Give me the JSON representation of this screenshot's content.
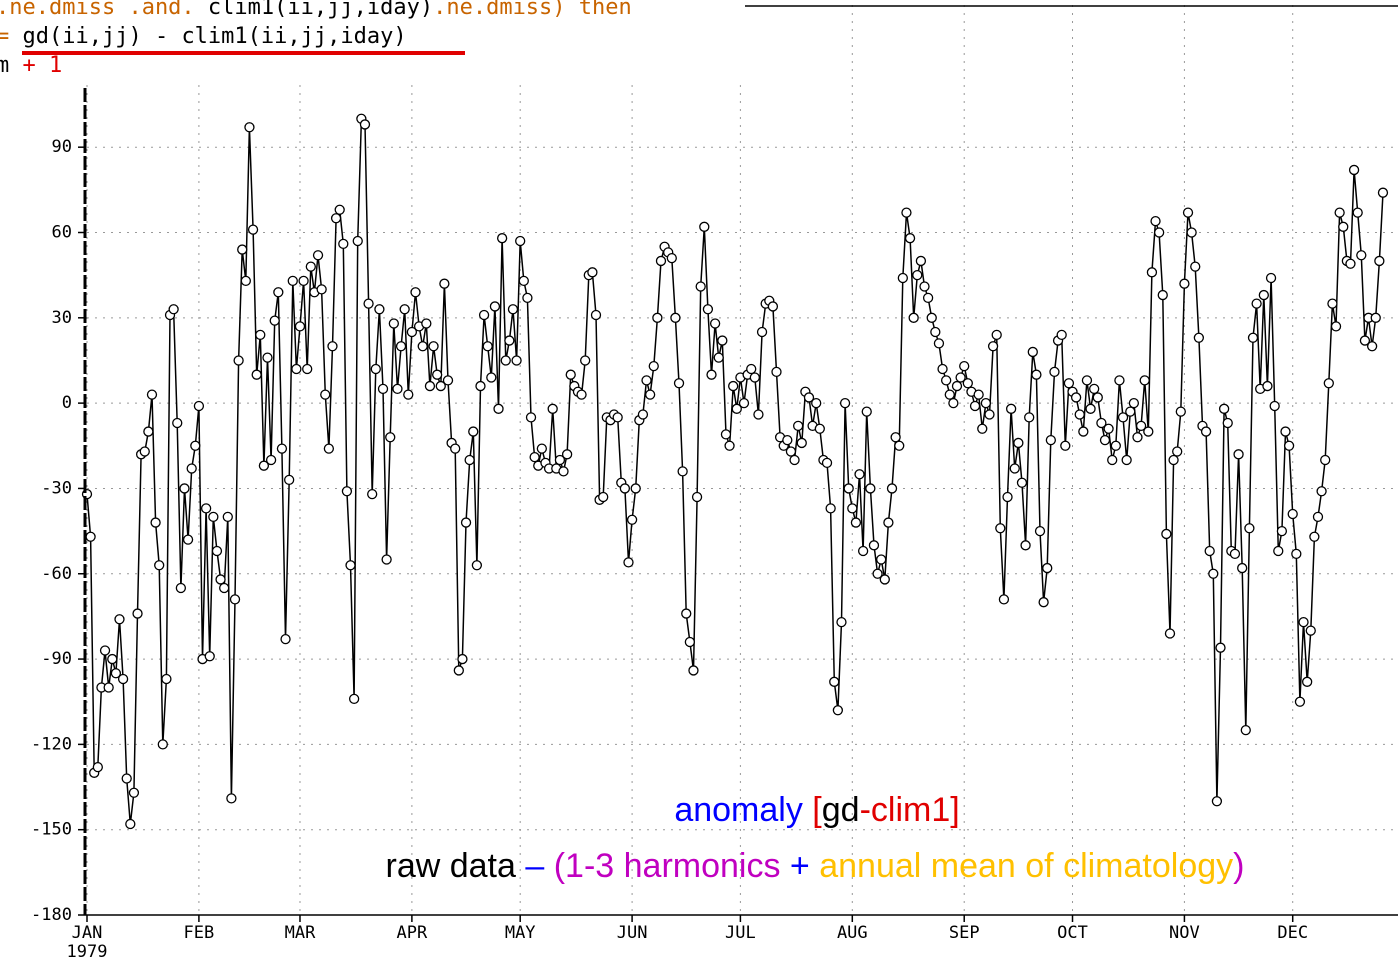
{
  "code_overlay": [
    [
      {
        "text": ".ne.dmiss .and. ",
        "color": "#c86400"
      },
      {
        "text": "clim1(ii,jj,iday)",
        "color": "#000000"
      },
      {
        "text": ".ne.dmiss) then",
        "color": "#c86400"
      }
    ],
    [
      {
        "text": "= ",
        "color": "#c86400"
      },
      {
        "text": "gd(ii,jj) - clim1(ii,jj,iday)",
        "color": "#000000"
      }
    ],
    [
      {
        "text": "m ",
        "color": "#000000"
      },
      {
        "text": "+ 1",
        "color": "#e00000"
      }
    ]
  ],
  "chart_data": {
    "type": "line",
    "x_sublabel": "1979",
    "color": "#000000",
    "marker_color": "#ffffff",
    "grid": true,
    "xlim": [
      1,
      364
    ],
    "ylim": [
      -180,
      140
    ],
    "yticks": [
      -180,
      -150,
      -120,
      -90,
      -60,
      -30,
      0,
      30,
      60,
      90
    ],
    "xticks": [
      {
        "value": 1,
        "label": "JAN"
      },
      {
        "value": 32,
        "label": "FEB"
      },
      {
        "value": 60,
        "label": "MAR"
      },
      {
        "value": 91,
        "label": "APR"
      },
      {
        "value": 121,
        "label": "MAY"
      },
      {
        "value": 152,
        "label": "JUN"
      },
      {
        "value": 182,
        "label": "JUL"
      },
      {
        "value": 213,
        "label": "AUG"
      },
      {
        "value": 244,
        "label": "SEP"
      },
      {
        "value": 274,
        "label": "OCT"
      },
      {
        "value": 305,
        "label": "NOV"
      },
      {
        "value": 335,
        "label": "DEC"
      }
    ],
    "annotations": [
      [
        {
          "text": "anomaly ",
          "color": "#0000ff"
        },
        {
          "text": "[",
          "color": "#e00000"
        },
        {
          "text": "gd",
          "color": "#000000"
        },
        {
          "text": "-clim1]",
          "color": "#e00000"
        }
      ],
      [
        {
          "text": "raw data ",
          "color": "#000000"
        },
        {
          "text": "–",
          "color": "#0000ff"
        },
        {
          "text": " (1-3 harmonics",
          "color": "#c000c0"
        },
        {
          "text": " + ",
          "color": "#0000ff"
        },
        {
          "text": "annual mean of climatology",
          "color": "#ffc000"
        },
        {
          "text": ")",
          "color": "#c000c0"
        }
      ]
    ],
    "x": [
      1,
      2,
      3,
      4,
      5,
      6,
      7,
      8,
      9,
      10,
      11,
      12,
      13,
      14,
      15,
      16,
      17,
      18,
      19,
      20,
      21,
      22,
      23,
      24,
      25,
      26,
      27,
      28,
      29,
      30,
      31,
      32,
      33,
      34,
      35,
      36,
      37,
      38,
      39,
      40,
      41,
      42,
      43,
      44,
      45,
      46,
      47,
      48,
      49,
      50,
      51,
      52,
      53,
      54,
      55,
      56,
      57,
      58,
      59,
      60,
      61,
      62,
      63,
      64,
      65,
      66,
      67,
      68,
      69,
      70,
      71,
      72,
      73,
      74,
      75,
      76,
      77,
      78,
      79,
      80,
      81,
      82,
      83,
      84,
      85,
      86,
      87,
      88,
      89,
      90,
      91,
      92,
      93,
      94,
      95,
      96,
      97,
      98,
      99,
      100,
      101,
      102,
      103,
      104,
      105,
      106,
      107,
      108,
      109,
      110,
      111,
      112,
      113,
      114,
      115,
      116,
      117,
      118,
      119,
      120,
      121,
      122,
      123,
      124,
      125,
      126,
      127,
      128,
      129,
      130,
      131,
      132,
      133,
      134,
      135,
      136,
      137,
      138,
      139,
      140,
      141,
      142,
      143,
      144,
      145,
      146,
      147,
      148,
      149,
      150,
      151,
      152,
      153,
      154,
      155,
      156,
      157,
      158,
      159,
      160,
      161,
      162,
      163,
      164,
      165,
      166,
      167,
      168,
      169,
      170,
      171,
      172,
      173,
      174,
      175,
      176,
      177,
      178,
      179,
      180,
      181,
      182,
      183,
      184,
      185,
      186,
      187,
      188,
      189,
      190,
      191,
      192,
      193,
      194,
      195,
      196,
      197,
      198,
      199,
      200,
      201,
      202,
      203,
      204,
      205,
      206,
      207,
      208,
      209,
      210,
      211,
      212,
      213,
      214,
      215,
      216,
      217,
      218,
      219,
      220,
      221,
      222,
      223,
      224,
      225,
      226,
      227,
      228,
      229,
      230,
      231,
      232,
      233,
      234,
      235,
      236,
      237,
      238,
      239,
      240,
      241,
      242,
      243,
      244,
      245,
      246,
      247,
      248,
      249,
      250,
      251,
      252,
      253,
      254,
      255,
      256,
      257,
      258,
      259,
      260,
      261,
      262,
      263,
      264,
      265,
      266,
      267,
      268,
      269,
      270,
      271,
      272,
      273,
      274,
      275,
      276,
      277,
      278,
      279,
      280,
      281,
      282,
      283,
      284,
      285,
      286,
      287,
      288,
      289,
      290,
      291,
      292,
      293,
      294,
      295,
      296,
      297,
      298,
      299,
      300,
      301,
      302,
      303,
      304,
      305,
      306,
      307,
      308,
      309,
      310,
      311,
      312,
      313,
      314,
      315,
      316,
      317,
      318,
      319,
      320,
      321,
      322,
      323,
      324,
      325,
      326,
      327,
      328,
      329,
      330,
      331,
      332,
      333,
      334,
      335,
      336,
      337,
      338,
      339,
      340,
      341,
      342,
      343,
      344,
      345,
      346,
      347,
      348,
      349,
      350,
      351,
      352,
      353,
      354,
      355,
      356,
      357,
      358,
      359,
      360
    ],
    "values": [
      -32,
      -47,
      -130,
      -128,
      -100,
      -87,
      -100,
      -90,
      -95,
      -76,
      -97,
      -132,
      -148,
      -137,
      -74,
      -18,
      -17,
      -10,
      3,
      -42,
      -57,
      -120,
      -97,
      31,
      33,
      -7,
      -65,
      -30,
      -48,
      -23,
      -15,
      -1,
      -90,
      -37,
      -89,
      -40,
      -52,
      -62,
      -65,
      -40,
      -139,
      -69,
      15,
      54,
      43,
      97,
      61,
      10,
      24,
      -22,
      16,
      -20,
      29,
      39,
      -16,
      -83,
      -27,
      43,
      12,
      27,
      43,
      12,
      48,
      39,
      52,
      40,
      3,
      -16,
      20,
      65,
      68,
      56,
      -31,
      -57,
      -104,
      57,
      100,
      98,
      35,
      -32,
      12,
      33,
      5,
      -55,
      -12,
      28,
      5,
      20,
      33,
      3,
      25,
      39,
      27,
      20,
      28,
      6,
      20,
      10,
      6,
      42,
      8,
      -14,
      -16,
      -94,
      -90,
      -42,
      -20,
      -10,
      -57,
      6,
      31,
      20,
      9,
      34,
      -2,
      58,
      15,
      22,
      33,
      15,
      57,
      43,
      37,
      -5,
      -19,
      -22,
      -16,
      -21,
      -23,
      -2,
      -23,
      -20,
      -24,
      -18,
      10,
      6,
      4,
      3,
      15,
      45,
      46,
      31,
      -34,
      -33,
      -5,
      -6,
      -4,
      -5,
      -28,
      -30,
      -56,
      -41,
      -30,
      -6,
      -4,
      8,
      3,
      13,
      30,
      50,
      55,
      53,
      51,
      30,
      7,
      -24,
      -74,
      -84,
      -94,
      -33,
      41,
      62,
      33,
      10,
      28,
      16,
      22,
      -11,
      -15,
      6,
      -2,
      9,
      0,
      10,
      12,
      9,
      -4,
      25,
      35,
      36,
      34,
      11,
      -12,
      -15,
      -13,
      -17,
      -20,
      -8,
      -14,
      4,
      2,
      -8,
      0,
      -9,
      -20,
      -21,
      -37,
      -98,
      -108,
      -77,
      0,
      -30,
      -37,
      -42,
      -25,
      -52,
      -3,
      -30,
      -50,
      -60,
      -55,
      -62,
      -42,
      -30,
      -12,
      -15,
      44,
      67,
      58,
      30,
      45,
      50,
      41,
      37,
      30,
      25,
      21,
      12,
      8,
      3,
      0,
      6,
      9,
      13,
      7,
      4,
      -1,
      3,
      -9,
      0,
      -4,
      20,
      24,
      -44,
      -69,
      -33,
      -2,
      -23,
      -14,
      -28,
      -50,
      -5,
      18,
      10,
      -45,
      -70,
      -58,
      -13,
      11,
      22,
      24,
      -15,
      7,
      4,
      2,
      -4,
      -10,
      8,
      -2,
      5,
      2,
      -7,
      -13,
      -9,
      -20,
      -15,
      8,
      -5,
      -20,
      -3,
      0,
      -12,
      -8,
      8,
      -10,
      46,
      64,
      60,
      38,
      -46,
      -81,
      -20,
      -17,
      -3,
      42,
      67,
      60,
      48,
      23,
      -8,
      -10,
      -52,
      -60,
      -140,
      -86,
      -2,
      -7,
      -52,
      -53,
      -18,
      -58,
      -115,
      -44,
      23,
      35,
      5,
      38,
      6,
      44,
      -1,
      -52,
      -45,
      -10,
      -15,
      -39,
      -53,
      -105,
      -77,
      -98,
      -80,
      -47,
      -40,
      -31,
      -20,
      7,
      35,
      27,
      67,
      62,
      50,
      49,
      82,
      67,
      52,
      22,
      30,
      20,
      30,
      50,
      74
    ]
  }
}
